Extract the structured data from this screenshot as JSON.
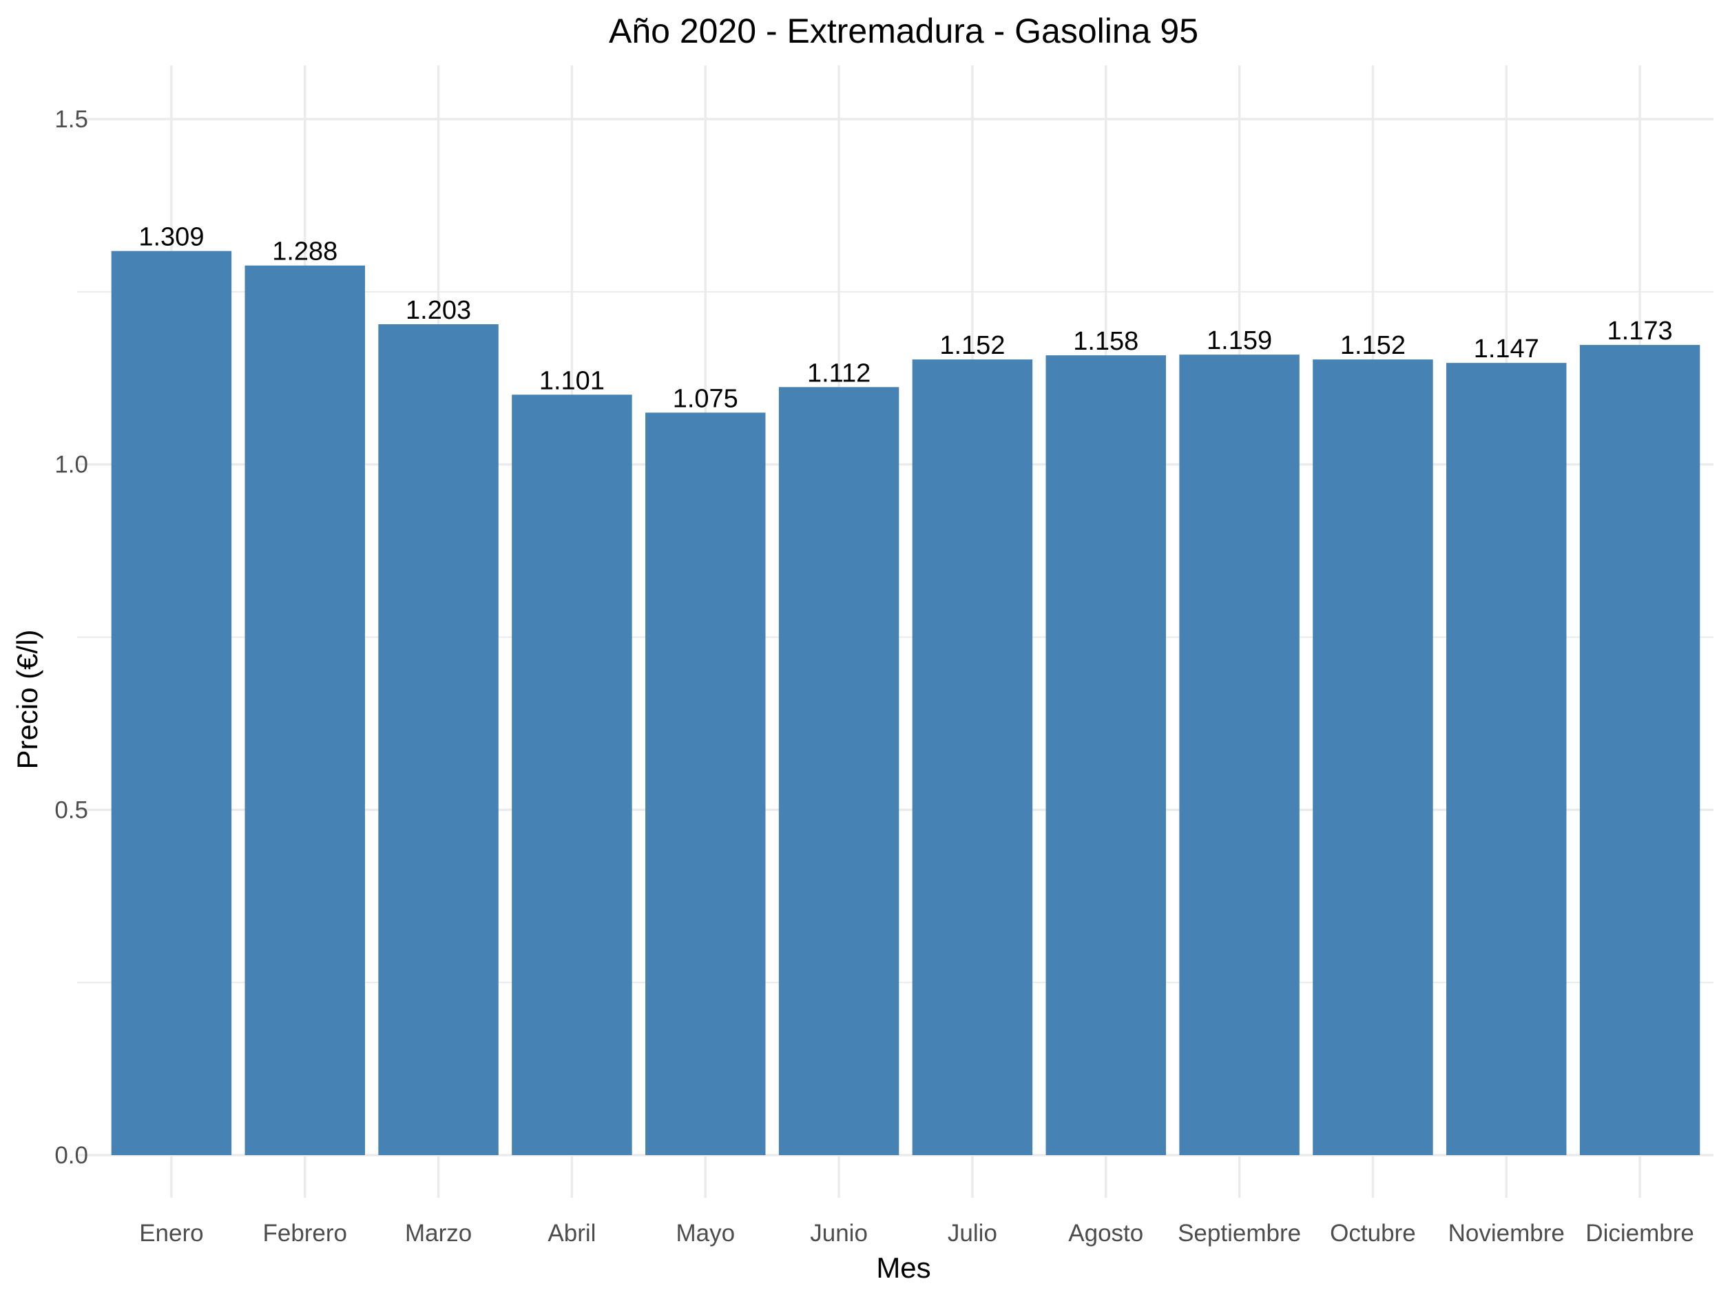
{
  "chart_data": {
    "type": "bar",
    "title": "Año 2020 - Extremadura - Gasolina 95",
    "xlabel": "Mes",
    "ylabel": "Precio (€/l)",
    "categories": [
      "Enero",
      "Febrero",
      "Marzo",
      "Abril",
      "Mayo",
      "Junio",
      "Julio",
      "Agosto",
      "Septiembre",
      "Octubre",
      "Noviembre",
      "Diciembre"
    ],
    "values": [
      1.309,
      1.288,
      1.203,
      1.101,
      1.075,
      1.112,
      1.152,
      1.158,
      1.159,
      1.152,
      1.147,
      1.173
    ],
    "data_labels": [
      "1.309",
      "1.288",
      "1.203",
      "1.101",
      "1.075",
      "1.112",
      "1.152",
      "1.158",
      "1.159",
      "1.152",
      "1.147",
      "1.173"
    ],
    "ylim": [
      0,
      1.5
    ],
    "yticks": [
      0.0,
      0.5,
      1.0,
      1.5
    ],
    "ytick_labels": [
      "0.0",
      "0.5",
      "1.0",
      "1.5"
    ],
    "bar_color": "#4682B4",
    "grid": true,
    "grid_color": "#EBEBEB",
    "legend": "none"
  }
}
